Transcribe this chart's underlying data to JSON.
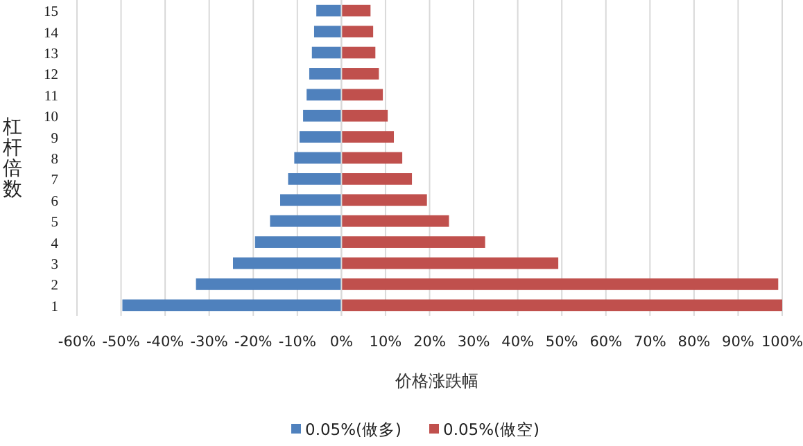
{
  "chart_data": {
    "type": "bar",
    "orientation": "horizontal",
    "xlabel": "价格涨跌幅",
    "ylabel": "杠杆倍数",
    "categories": [
      "15",
      "14",
      "13",
      "12",
      "11",
      "10",
      "9",
      "8",
      "7",
      "6",
      "5",
      "4",
      "3",
      "2",
      "1"
    ],
    "series": [
      {
        "name": "0.05%(做多)",
        "color": "#4f81bd",
        "values": [
          -5.7,
          -6.2,
          -6.7,
          -7.3,
          -7.9,
          -8.7,
          -9.5,
          -10.7,
          -12.1,
          -13.9,
          -16.2,
          -19.6,
          -24.6,
          -33.0,
          -49.7
        ]
      },
      {
        "name": "0.05%(做空)",
        "color": "#c0504d",
        "values": [
          6.6,
          7.2,
          7.7,
          8.5,
          9.4,
          10.5,
          11.9,
          13.8,
          16.0,
          19.4,
          24.4,
          32.6,
          49.2,
          99.1,
          100
        ]
      }
    ],
    "xlim": [
      -60,
      100
    ],
    "xticks": [
      {
        "value": -60,
        "label": "-60%"
      },
      {
        "value": -50,
        "label": "-50%"
      },
      {
        "value": -40,
        "label": "-40%"
      },
      {
        "value": -30,
        "label": "-30%"
      },
      {
        "value": -20,
        "label": "-20%"
      },
      {
        "value": -10,
        "label": "-10%"
      },
      {
        "value": 0,
        "label": "0%"
      },
      {
        "value": 10,
        "label": "10%"
      },
      {
        "value": 20,
        "label": "20%"
      },
      {
        "value": 30,
        "label": "30%"
      },
      {
        "value": 40,
        "label": "40%"
      },
      {
        "value": 50,
        "label": "50%"
      },
      {
        "value": 60,
        "label": "60%"
      },
      {
        "value": 70,
        "label": "70%"
      },
      {
        "value": 80,
        "label": "80%"
      },
      {
        "value": 90,
        "label": "90%"
      },
      {
        "value": 100,
        "label": "100%"
      }
    ],
    "grid": "x",
    "legend": "bottom",
    "stacked": true
  }
}
